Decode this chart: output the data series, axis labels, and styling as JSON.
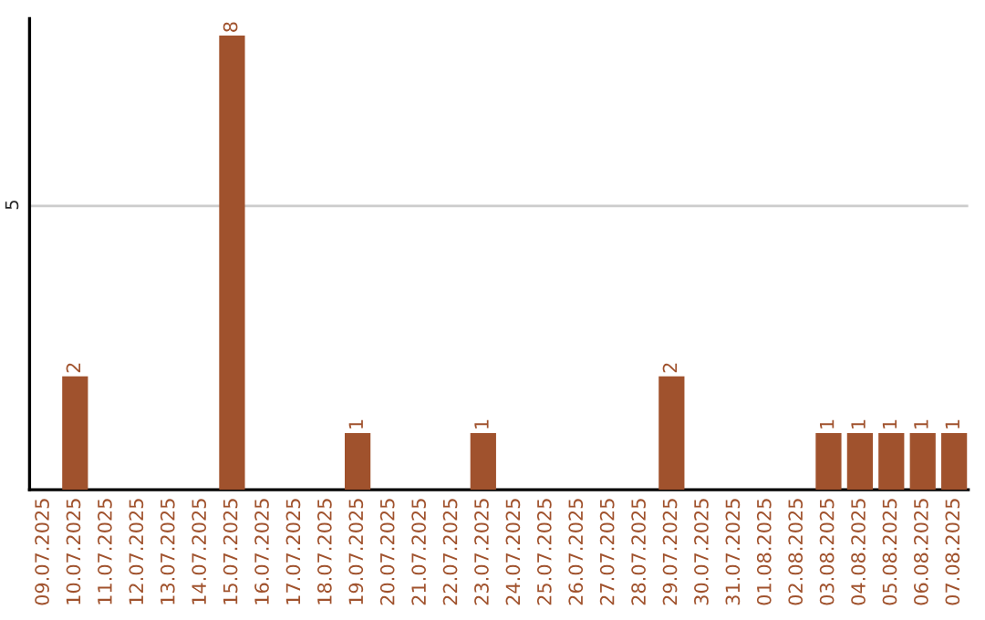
{
  "chart_data": {
    "type": "bar",
    "categories": [
      "09.07.2025",
      "10.07.2025",
      "11.07.2025",
      "12.07.2025",
      "13.07.2025",
      "14.07.2025",
      "15.07.2025",
      "16.07.2025",
      "17.07.2025",
      "18.07.2025",
      "19.07.2025",
      "20.07.2025",
      "21.07.2025",
      "22.07.2025",
      "23.07.2025",
      "24.07.2025",
      "25.07.2025",
      "26.07.2025",
      "27.07.2025",
      "28.07.2025",
      "29.07.2025",
      "30.07.2025",
      "31.07.2025",
      "01.08.2025",
      "02.08.2025",
      "03.08.2025",
      "04.08.2025",
      "05.08.2025",
      "06.08.2025",
      "07.08.2025"
    ],
    "values": [
      0,
      2,
      0,
      0,
      0,
      0,
      8,
      0,
      0,
      0,
      1,
      0,
      0,
      0,
      1,
      0,
      0,
      0,
      0,
      0,
      2,
      0,
      0,
      0,
      0,
      1,
      1,
      1,
      1,
      1
    ],
    "value_labels": [
      null,
      "2",
      null,
      null,
      null,
      null,
      "8",
      null,
      null,
      null,
      "1",
      null,
      null,
      null,
      "1",
      null,
      null,
      null,
      null,
      null,
      "2",
      null,
      null,
      null,
      null,
      "1",
      "1",
      "1",
      "1",
      "1"
    ],
    "color": "#a0522d",
    "ylim": [
      0,
      8.3
    ],
    "yticks": [
      5
    ],
    "grid": "y",
    "legend": false
  }
}
